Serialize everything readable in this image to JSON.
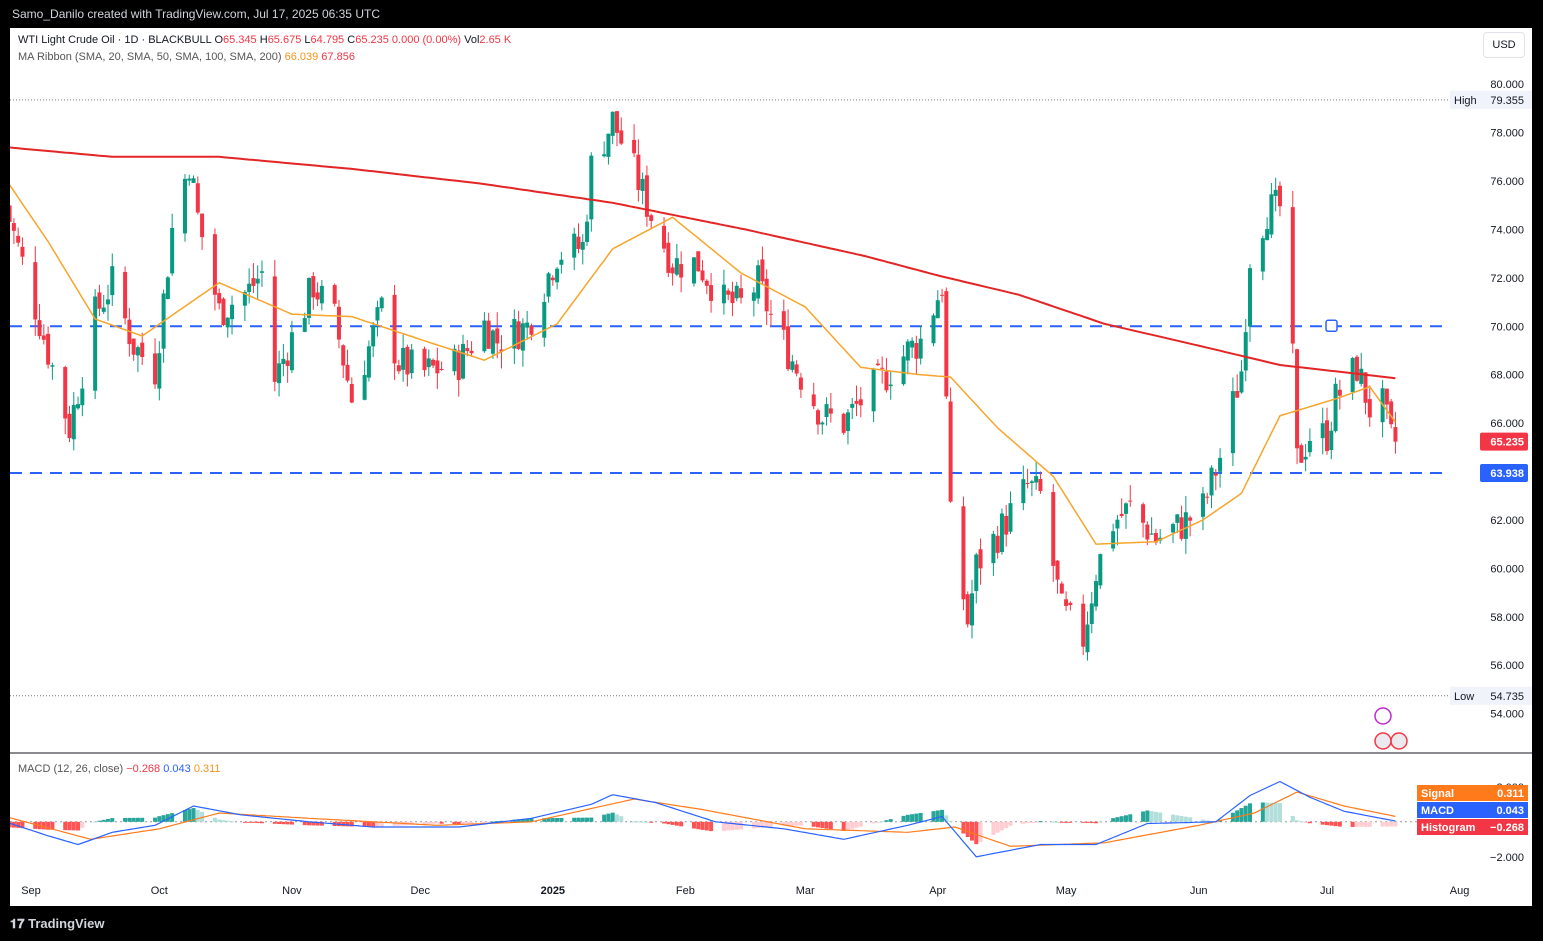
{
  "header": {
    "credit": "Samo_Danilo created with TradingView.com, Jul 17, 2025 06:35 UTC"
  },
  "footer": {
    "brand": "TradingView"
  },
  "toolbar": {
    "currency": "USD"
  },
  "legend": {
    "symbol": "WTI Light Crude Oil · 1D · BLACKBULL",
    "o_label": "O",
    "o_val": "65.345",
    "h_label": "H",
    "h_val": "65.675",
    "l_label": "L",
    "l_val": "64.795",
    "c_label": "C",
    "c_val": "65.235",
    "change": "0.000 (0.00%)",
    "vol_label": "Vol",
    "vol_val": "2.65 K",
    "ma_name": "MA Ribbon (SMA, 20, SMA, 50, SMA, 100, SMA, 200)",
    "ma20": "66.039",
    "ma200": "67.856",
    "macd_name": "MACD (12, 26, close)",
    "macd_hist": "−0.268",
    "macd_macd": "0.043",
    "macd_signal": "0.311"
  },
  "colors": {
    "up": "#089981",
    "down": "#f23645",
    "sma20": "#f7a52a",
    "sma200": "#e32526",
    "level": "#2962ff",
    "macd": "#2962ff",
    "signal": "#ff7a1a"
  },
  "chart_data": {
    "type": "candlestick",
    "x_labels": [
      "Sep",
      "Oct",
      "Nov",
      "Dec",
      "2025",
      "Feb",
      "Mar",
      "Apr",
      "May",
      "Jun",
      "Jul",
      "Aug"
    ],
    "y_ticks": [
      "80.000",
      "78.000",
      "76.000",
      "74.000",
      "72.000",
      "70.000",
      "68.000",
      "66.000",
      "64.000",
      "62.000",
      "60.000",
      "58.000",
      "56.000",
      "54.000"
    ],
    "y_range": [
      53.4,
      80.8
    ],
    "levels": [
      {
        "value": 70.0,
        "style": "dashed"
      },
      {
        "value": 63.938,
        "style": "dashed",
        "label": "63.938"
      }
    ],
    "high": {
      "label": "High",
      "value": "79.355"
    },
    "low": {
      "label": "Low",
      "value": "54.735"
    },
    "last_price": "65.235",
    "anchors_close": [
      [
        "2024-08-26",
        75.0
      ],
      [
        "2024-09-03",
        70.2
      ],
      [
        "2024-09-10",
        65.8
      ],
      [
        "2024-09-16",
        70.5
      ],
      [
        "2024-09-20",
        71.8
      ],
      [
        "2024-09-25",
        69.2
      ],
      [
        "2024-09-30",
        68.2
      ],
      [
        "2024-10-04",
        74.0
      ],
      [
        "2024-10-08",
        76.8
      ],
      [
        "2024-10-10",
        74.5
      ],
      [
        "2024-10-15",
        70.6
      ],
      [
        "2024-10-22",
        71.5
      ],
      [
        "2024-10-25",
        72.2
      ],
      [
        "2024-10-28",
        67.8
      ],
      [
        "2024-11-01",
        69.5
      ],
      [
        "2024-11-06",
        71.7
      ],
      [
        "2024-11-11",
        70.3
      ],
      [
        "2024-11-15",
        67.0
      ],
      [
        "2024-11-22",
        70.7
      ],
      [
        "2024-11-26",
        68.5
      ],
      [
        "2024-12-02",
        68.1
      ],
      [
        "2024-12-10",
        68.5
      ],
      [
        "2024-12-16",
        70.1
      ],
      [
        "2024-12-19",
        69.4
      ],
      [
        "2024-12-26",
        70.0
      ],
      [
        "2025-01-02",
        73.0
      ],
      [
        "2025-01-08",
        73.3
      ],
      [
        "2025-01-10",
        76.6
      ],
      [
        "2025-01-15",
        78.5
      ],
      [
        "2025-01-20",
        76.4
      ],
      [
        "2025-01-24",
        74.6
      ],
      [
        "2025-01-29",
        72.6
      ],
      [
        "2025-02-04",
        72.6
      ],
      [
        "2025-02-10",
        71.0
      ],
      [
        "2025-02-14",
        70.9
      ],
      [
        "2025-02-18",
        71.8
      ],
      [
        "2025-02-21",
        70.4
      ],
      [
        "2025-02-26",
        68.6
      ],
      [
        "2025-03-05",
        66.3
      ],
      [
        "2025-03-10",
        66.0
      ],
      [
        "2025-03-14",
        66.9
      ],
      [
        "2025-03-20",
        68.0
      ],
      [
        "2025-03-25",
        69.0
      ],
      [
        "2025-03-28",
        69.4
      ],
      [
        "2025-04-02",
        71.7
      ],
      [
        "2025-04-04",
        62.0
      ],
      [
        "2025-04-08",
        57.8
      ],
      [
        "2025-04-10",
        60.1
      ],
      [
        "2025-04-15",
        61.4
      ],
      [
        "2025-04-22",
        63.4
      ],
      [
        "2025-04-25",
        63.0
      ],
      [
        "2025-04-30",
        58.2
      ],
      [
        "2025-05-05",
        57.1
      ],
      [
        "2025-05-08",
        59.9
      ],
      [
        "2025-05-12",
        61.9
      ],
      [
        "2025-05-16",
        62.5
      ],
      [
        "2025-05-22",
        61.2
      ],
      [
        "2025-05-28",
        61.8
      ],
      [
        "2025-06-02",
        62.5
      ],
      [
        "2025-06-06",
        64.6
      ],
      [
        "2025-06-11",
        68.2
      ],
      [
        "2025-06-13",
        72.9
      ],
      [
        "2025-06-17",
        74.8
      ],
      [
        "2025-06-20",
        74.9
      ],
      [
        "2025-06-23",
        68.5
      ],
      [
        "2025-06-24",
        64.4
      ],
      [
        "2025-06-27",
        65.5
      ],
      [
        "2025-07-01",
        65.5
      ],
      [
        "2025-07-03",
        67.0
      ],
      [
        "2025-07-08",
        68.3
      ],
      [
        "2025-07-11",
        66.6
      ],
      [
        "2025-07-14",
        66.7
      ],
      [
        "2025-07-16",
        65.3
      ],
      [
        "2025-07-17",
        65.235
      ]
    ],
    "sma20_anchors": [
      [
        "2024-08-26",
        76.1
      ],
      [
        "2024-09-05",
        73.5
      ],
      [
        "2024-09-16",
        70.3
      ],
      [
        "2024-09-27",
        69.6
      ],
      [
        "2024-10-15",
        71.8
      ],
      [
        "2024-11-01",
        70.5
      ],
      [
        "2024-11-15",
        70.4
      ],
      [
        "2024-12-02",
        69.4
      ],
      [
        "2024-12-16",
        68.6
      ],
      [
        "2025-01-02",
        70.1
      ],
      [
        "2025-01-15",
        73.2
      ],
      [
        "2025-01-29",
        74.5
      ],
      [
        "2025-02-14",
        72.2
      ],
      [
        "2025-03-01",
        70.8
      ],
      [
        "2025-03-14",
        68.3
      ],
      [
        "2025-03-28",
        68.0
      ],
      [
        "2025-04-04",
        67.9
      ],
      [
        "2025-04-15",
        65.8
      ],
      [
        "2025-04-28",
        63.8
      ],
      [
        "2025-05-08",
        61.0
      ],
      [
        "2025-05-22",
        61.1
      ],
      [
        "2025-06-02",
        62.0
      ],
      [
        "2025-06-11",
        63.1
      ],
      [
        "2025-06-20",
        66.3
      ],
      [
        "2025-07-03",
        67.0
      ],
      [
        "2025-07-11",
        67.5
      ],
      [
        "2025-07-17",
        66.039
      ]
    ],
    "sma200_anchors": [
      [
        "2024-08-26",
        77.4
      ],
      [
        "2024-09-20",
        77.0
      ],
      [
        "2024-10-15",
        77.0
      ],
      [
        "2024-11-15",
        76.5
      ],
      [
        "2024-12-15",
        75.9
      ],
      [
        "2025-01-15",
        75.1
      ],
      [
        "2025-02-15",
        74.0
      ],
      [
        "2025-03-15",
        72.9
      ],
      [
        "2025-04-01",
        72.1
      ],
      [
        "2025-04-20",
        71.3
      ],
      [
        "2025-05-10",
        70.1
      ],
      [
        "2025-06-01",
        69.2
      ],
      [
        "2025-06-20",
        68.4
      ],
      [
        "2025-07-17",
        67.856
      ]
    ],
    "macd_panel": {
      "y_ticks": [
        "2.000",
        "−2.000"
      ],
      "range": [
        -2.6,
        2.6
      ],
      "signal": {
        "label": "Signal",
        "value": "0.311"
      },
      "macd": {
        "label": "MACD",
        "value": "0.043"
      },
      "histogram": {
        "label": "Histogram",
        "value": "−0.268"
      },
      "macd_anchors": [
        [
          "2024-08-26",
          0.0
        ],
        [
          "2024-09-05",
          -0.8
        ],
        [
          "2024-09-12",
          -1.3
        ],
        [
          "2024-09-20",
          -0.6
        ],
        [
          "2024-09-30",
          -0.2
        ],
        [
          "2024-10-09",
          0.9
        ],
        [
          "2024-10-20",
          0.4
        ],
        [
          "2024-11-05",
          0.0
        ],
        [
          "2024-11-20",
          -0.3
        ],
        [
          "2024-12-10",
          -0.3
        ],
        [
          "2024-12-27",
          0.2
        ],
        [
          "2025-01-10",
          1.0
        ],
        [
          "2025-01-15",
          1.55
        ],
        [
          "2025-01-25",
          1.1
        ],
        [
          "2025-02-08",
          0.0
        ],
        [
          "2025-02-24",
          -0.4
        ],
        [
          "2025-03-10",
          -1.0
        ],
        [
          "2025-03-25",
          -0.2
        ],
        [
          "2025-04-02",
          0.3
        ],
        [
          "2025-04-10",
          -2.0
        ],
        [
          "2025-04-25",
          -1.3
        ],
        [
          "2025-05-08",
          -1.3
        ],
        [
          "2025-05-20",
          -0.1
        ],
        [
          "2025-06-05",
          0.0
        ],
        [
          "2025-06-13",
          1.5
        ],
        [
          "2025-06-20",
          2.3
        ],
        [
          "2025-06-27",
          1.4
        ],
        [
          "2025-07-05",
          0.6
        ],
        [
          "2025-07-17",
          0.043
        ]
      ],
      "signal_anchors": [
        [
          "2024-08-26",
          0.3
        ],
        [
          "2024-09-15",
          -1.0
        ],
        [
          "2024-10-01",
          -0.4
        ],
        [
          "2024-10-15",
          0.5
        ],
        [
          "2024-11-05",
          0.2
        ],
        [
          "2024-12-05",
          -0.2
        ],
        [
          "2024-12-27",
          0.0
        ],
        [
          "2025-01-20",
          1.3
        ],
        [
          "2025-02-05",
          0.7
        ],
        [
          "2025-03-01",
          -0.4
        ],
        [
          "2025-03-25",
          -0.6
        ],
        [
          "2025-04-05",
          -0.3
        ],
        [
          "2025-04-18",
          -1.4
        ],
        [
          "2025-05-10",
          -1.2
        ],
        [
          "2025-06-01",
          -0.2
        ],
        [
          "2025-06-14",
          0.5
        ],
        [
          "2025-06-24",
          1.7
        ],
        [
          "2025-07-05",
          0.9
        ],
        [
          "2025-07-17",
          0.311
        ]
      ]
    }
  }
}
